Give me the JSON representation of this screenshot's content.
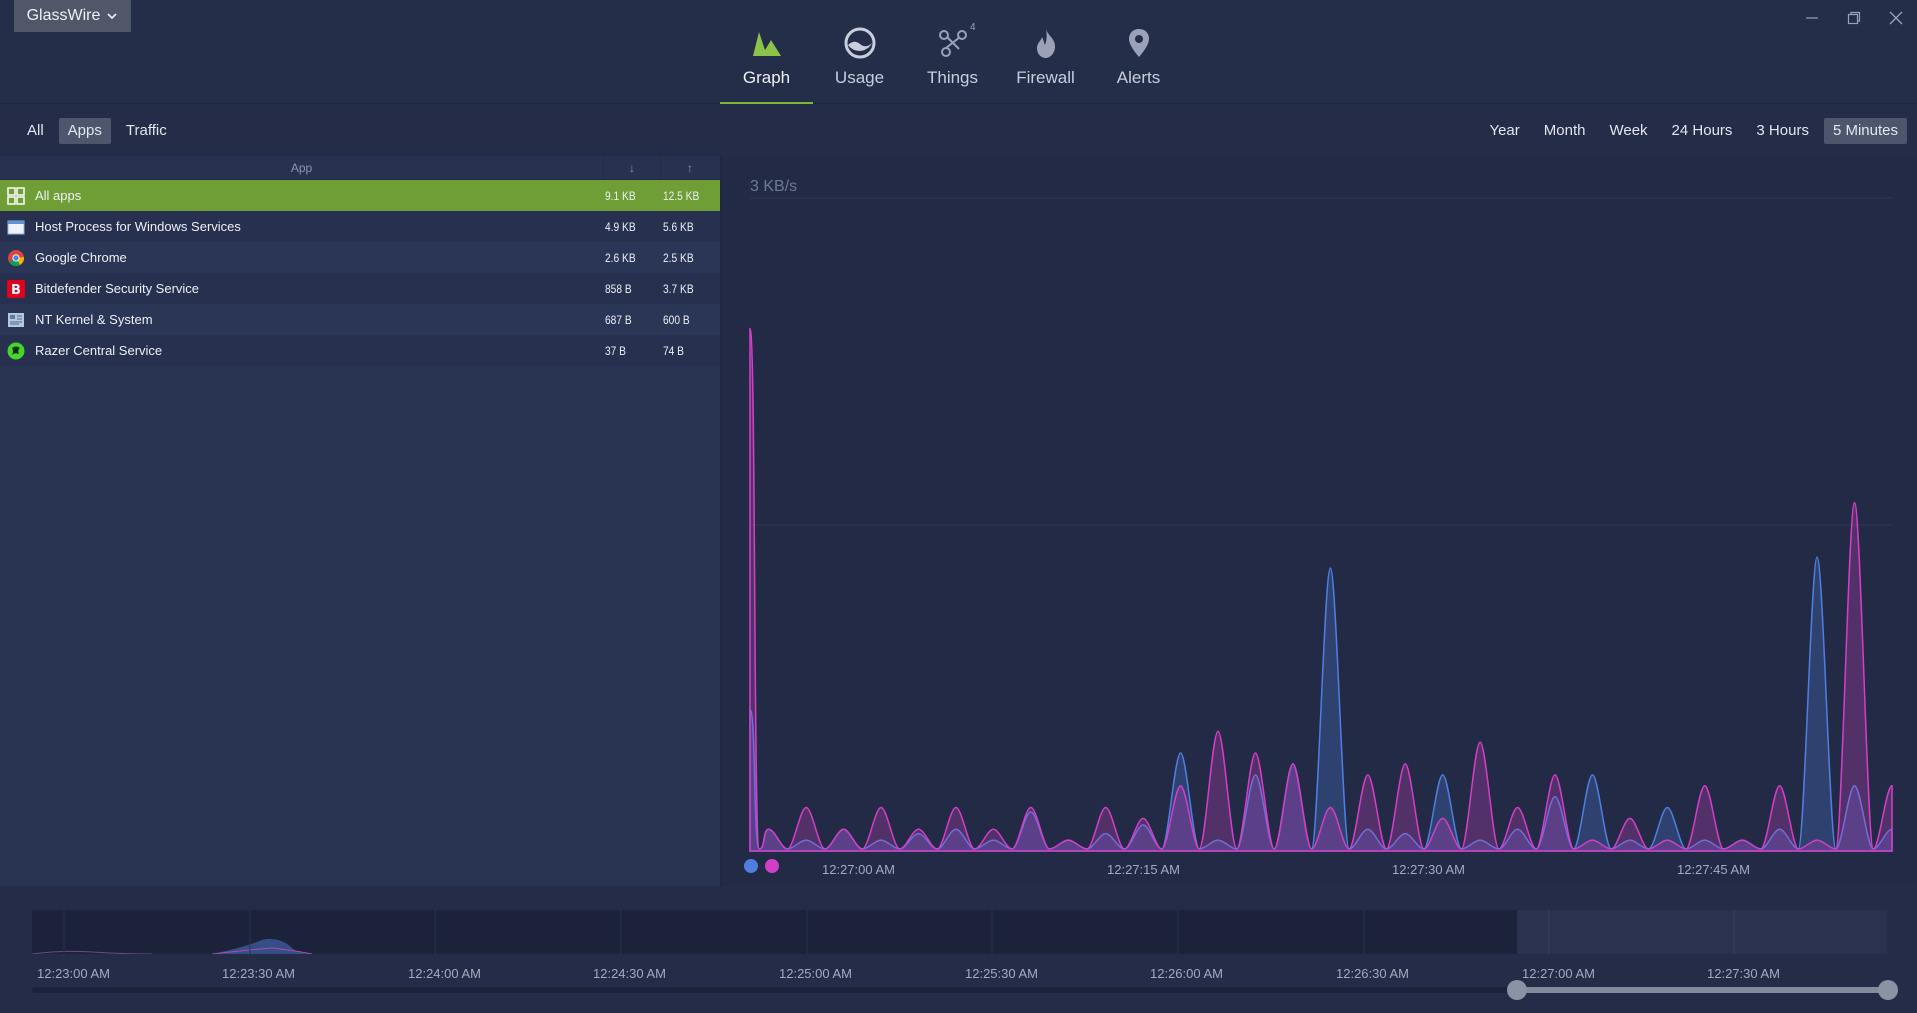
{
  "app": {
    "brand_label": "GlassWire",
    "colors": {
      "accent_green": "#7ab839",
      "selected_row": "#6f9e37",
      "download_series": "#4f7ee0",
      "upload_series": "#d23fc6"
    }
  },
  "nav": {
    "items": [
      {
        "label": "Graph",
        "icon": "graph-icon",
        "active": true
      },
      {
        "label": "Usage",
        "icon": "usage-icon"
      },
      {
        "label": "Things",
        "icon": "things-icon",
        "badge": "4"
      },
      {
        "label": "Firewall",
        "icon": "firewall-icon"
      },
      {
        "label": "Alerts",
        "icon": "alerts-icon"
      }
    ]
  },
  "filters": {
    "view": [
      "All",
      "Apps",
      "Traffic"
    ],
    "view_active": "Apps",
    "range": [
      "Year",
      "Month",
      "Week",
      "24 Hours",
      "3 Hours",
      "5 Minutes"
    ],
    "range_active": "5 Minutes"
  },
  "table": {
    "headers": {
      "app": "App",
      "down": "↓",
      "up": "↑"
    },
    "rows": [
      {
        "name": "All apps",
        "down": "9.1 KB",
        "up": "12.5 KB",
        "icon": "all-apps-icon",
        "selected": true
      },
      {
        "name": "Host Process for Windows Services",
        "down": "4.9 KB",
        "up": "5.6 KB",
        "icon": "window-icon"
      },
      {
        "name": "Google Chrome",
        "down": "2.6 KB",
        "up": "2.5 KB",
        "icon": "chrome-icon"
      },
      {
        "name": "Bitdefender Security Service",
        "down": "858 B",
        "up": "3.7 KB",
        "icon": "bitdefender-icon"
      },
      {
        "name": "NT Kernel & System",
        "down": "687 B",
        "up": "600 B",
        "icon": "system-icon"
      },
      {
        "name": "Razer Central Service",
        "down": "37 B",
        "up": "74 B",
        "icon": "razer-icon"
      }
    ]
  },
  "graph": {
    "y_label": "3 KB/s",
    "x_ticks": [
      "12:27:00 AM",
      "12:27:15 AM",
      "12:27:30 AM",
      "12:27:45 AM"
    ]
  },
  "timeline": {
    "labels": [
      "12:23:00 AM",
      "12:23:30 AM",
      "12:24:00 AM",
      "12:24:30 AM",
      "12:25:00 AM",
      "12:25:30 AM",
      "12:26:00 AM",
      "12:26:30 AM",
      "12:27:00 AM",
      "12:27:30 AM"
    ]
  },
  "chart_data": {
    "type": "area",
    "y_axis_label": "3 KB/s",
    "ylim": [
      0,
      3
    ],
    "x_ticks": [
      "12:27:00 AM",
      "12:27:15 AM",
      "12:27:30 AM",
      "12:27:45 AM"
    ],
    "grid": true,
    "series": [
      {
        "color": "#4f7ee0",
        "x": [
          0,
          1,
          3,
          5,
          7,
          9,
          11,
          13,
          15,
          17,
          19,
          21,
          23,
          25,
          27,
          29,
          31,
          33,
          35,
          37,
          39,
          41,
          43,
          45,
          47,
          49,
          51,
          53,
          55,
          57,
          59,
          61
        ],
        "values": [
          0.65,
          0.1,
          0.05,
          0.1,
          0.05,
          0.08,
          0.1,
          0.05,
          0.18,
          0.05,
          0.08,
          0.12,
          0.45,
          0.05,
          0.35,
          0.4,
          1.3,
          0.1,
          0.08,
          0.35,
          0.05,
          0.1,
          0.25,
          0.35,
          0.05,
          0.2,
          0.05,
          0.05,
          0.1,
          1.35,
          0.3,
          0.1
        ]
      },
      {
        "color": "#d23fc6",
        "x": [
          0,
          1,
          3,
          5,
          7,
          9,
          11,
          13,
          15,
          17,
          19,
          21,
          23,
          25,
          27,
          29,
          31,
          33,
          35,
          37,
          39,
          41,
          43,
          45,
          47,
          49,
          51,
          53,
          55,
          57,
          59,
          61
        ],
        "values": [
          2.4,
          0.1,
          0.2,
          0.1,
          0.2,
          0.1,
          0.2,
          0.1,
          0.2,
          0.05,
          0.2,
          0.15,
          0.3,
          0.55,
          0.45,
          0.4,
          0.2,
          0.35,
          0.4,
          0.15,
          0.5,
          0.2,
          0.35,
          0.05,
          0.15,
          0.05,
          0.3,
          0.05,
          0.3,
          0.05,
          1.6,
          0.3
        ]
      }
    ]
  }
}
